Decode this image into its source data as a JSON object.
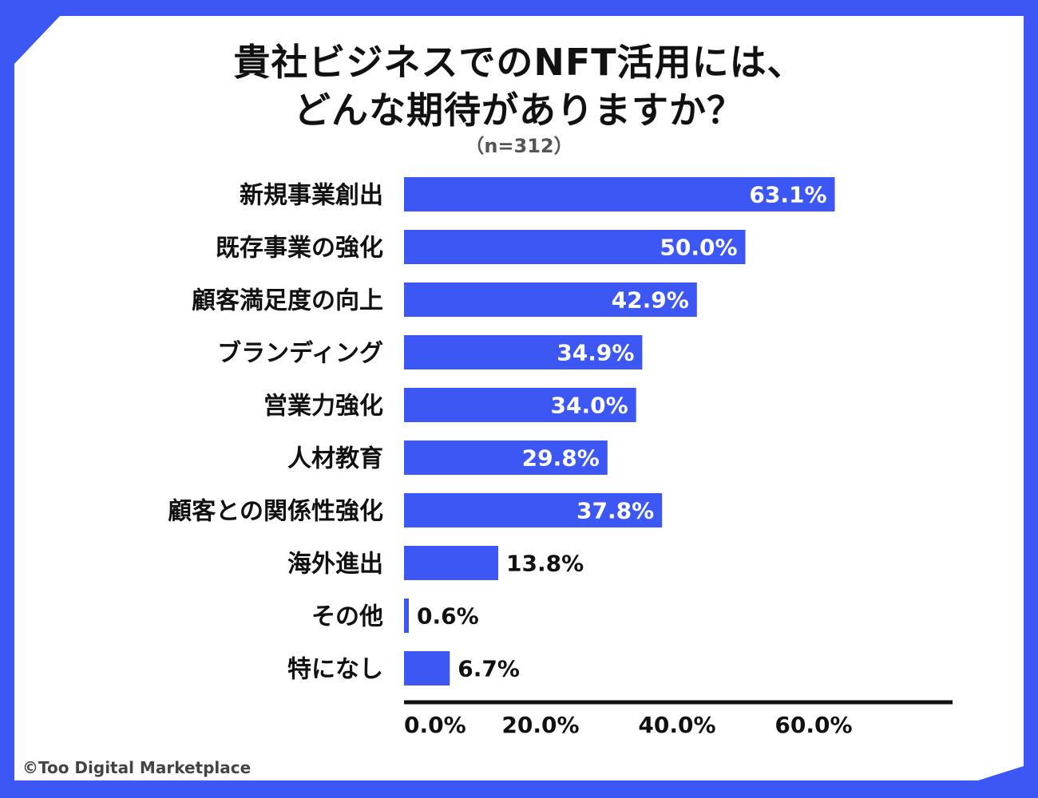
{
  "title_lines": [
    "貴社ビジネスでのNFT活用には、",
    "どんな期待がありますか？"
  ],
  "subtitle": "（n=312）",
  "credit": "©Too Digital Marketplace",
  "colors": {
    "bar": "#3d57f5",
    "frame": "#3d57f5",
    "text": "#111111",
    "background": "#ffffff"
  },
  "chart_data": {
    "type": "bar",
    "orientation": "horizontal",
    "title": "貴社ビジネスでのNFT活用には、どんな期待がありますか？",
    "subtitle": "（n=312）",
    "categories": [
      "新規事業創出",
      "既存事業の強化",
      "顧客満足度の向上",
      "ブランディング",
      "営業力強化",
      "人材教育",
      "顧客との関係性強化",
      "海外進出",
      "その他",
      "特になし"
    ],
    "values": [
      63.1,
      50.0,
      42.9,
      34.9,
      34.0,
      29.8,
      37.8,
      13.8,
      0.6,
      6.7
    ],
    "value_labels": [
      "63.1%",
      "50.0%",
      "42.9%",
      "34.9%",
      "34.0%",
      "29.8%",
      "37.8%",
      "13.8%",
      "0.6%",
      "6.7%"
    ],
    "x_ticks": [
      0,
      20,
      40,
      60
    ],
    "x_tick_labels": [
      "0.0%",
      "20.0%",
      "40.0%",
      "60.0%"
    ],
    "xlim": [
      0,
      80
    ],
    "xlabel": "",
    "ylabel": "",
    "grid": false,
    "legend": "none"
  }
}
